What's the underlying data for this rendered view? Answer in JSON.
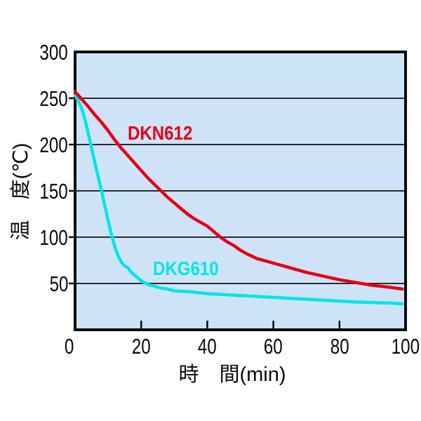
{
  "chart_data": {
    "type": "line",
    "title": "",
    "xlabel": "時　間(min)",
    "ylabel": "温　度(℃)",
    "xlim": [
      0,
      100
    ],
    "ylim": [
      0,
      300
    ],
    "x_ticks": [
      0,
      20,
      40,
      60,
      80,
      100
    ],
    "y_ticks": [
      50,
      100,
      150,
      200,
      250,
      300
    ],
    "grid": "horizontal",
    "legend_position": "inline-curve-labels",
    "plot_bg_color": "#cfe3f8",
    "grid_color": "#2b2b2b",
    "axis_color": "#0a0a0a",
    "series": [
      {
        "name": "DKN612",
        "color": "#e60012",
        "points": [
          [
            0,
            257
          ],
          [
            2,
            249
          ],
          [
            4,
            241
          ],
          [
            6,
            232
          ],
          [
            8,
            224
          ],
          [
            10,
            215
          ],
          [
            12,
            205
          ],
          [
            14,
            196
          ],
          [
            16,
            188
          ],
          [
            18,
            180
          ],
          [
            20,
            172
          ],
          [
            22,
            164
          ],
          [
            24,
            157
          ],
          [
            26,
            150
          ],
          [
            28,
            143
          ],
          [
            30,
            137
          ],
          [
            32,
            131
          ],
          [
            34,
            125
          ],
          [
            36,
            120
          ],
          [
            38,
            116
          ],
          [
            40,
            112
          ],
          [
            42,
            106
          ],
          [
            44,
            100
          ],
          [
            46,
            95
          ],
          [
            48,
            91
          ],
          [
            50,
            86
          ],
          [
            52,
            82
          ],
          [
            55,
            77
          ],
          [
            58,
            74
          ],
          [
            60,
            72
          ],
          [
            65,
            67
          ],
          [
            70,
            62
          ],
          [
            75,
            58
          ],
          [
            80,
            54
          ],
          [
            85,
            51
          ],
          [
            90,
            48
          ],
          [
            95,
            46
          ],
          [
            99,
            44
          ]
        ]
      },
      {
        "name": "DKG610",
        "color": "#00e6e6",
        "points": [
          [
            0,
            253
          ],
          [
            1,
            247
          ],
          [
            2,
            239
          ],
          [
            3,
            227
          ],
          [
            4,
            212
          ],
          [
            5,
            196
          ],
          [
            6,
            180
          ],
          [
            7,
            165
          ],
          [
            8,
            150
          ],
          [
            9,
            134
          ],
          [
            10,
            118
          ],
          [
            11,
            103
          ],
          [
            12,
            90
          ],
          [
            13,
            80
          ],
          [
            14,
            73
          ],
          [
            15,
            69
          ],
          [
            16,
            67
          ],
          [
            17,
            62
          ],
          [
            18,
            59
          ],
          [
            19,
            56
          ],
          [
            20,
            53
          ],
          [
            22,
            49
          ],
          [
            24,
            47
          ],
          [
            26,
            45
          ],
          [
            28,
            44
          ],
          [
            30,
            42
          ],
          [
            35,
            41
          ],
          [
            40,
            39
          ],
          [
            45,
            38
          ],
          [
            50,
            37
          ],
          [
            55,
            36
          ],
          [
            60,
            35
          ],
          [
            65,
            34
          ],
          [
            70,
            33
          ],
          [
            75,
            32
          ],
          [
            80,
            31
          ],
          [
            85,
            30
          ],
          [
            90,
            29.5
          ],
          [
            95,
            29
          ],
          [
            99,
            28
          ]
        ]
      }
    ]
  }
}
